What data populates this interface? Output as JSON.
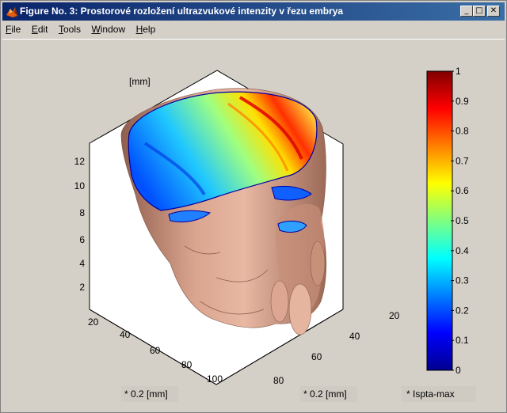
{
  "window": {
    "title": "Figure No. 3:  Prostorové rozložení ultrazvukové intenzity v řezu embrya",
    "minimize_glyph": "_",
    "maximize_glyph": "□",
    "close_glyph": "✕"
  },
  "menu": {
    "items": [
      {
        "label": "File",
        "hotkey": "F",
        "rest": "ile"
      },
      {
        "label": "Edit",
        "hotkey": "E",
        "rest": "dit"
      },
      {
        "label": "Tools",
        "hotkey": "T",
        "rest": "ools"
      },
      {
        "label": "Window",
        "hotkey": "W",
        "rest": "indow"
      },
      {
        "label": "Help",
        "hotkey": "H",
        "rest": "elp"
      }
    ]
  },
  "chart_data": {
    "type": "surface-3d",
    "z_label": "[mm]",
    "x_label": "* 0.2 [mm]",
    "y_label": "* 0.2 [mm]",
    "z_ticks": [
      "2",
      "4",
      "6",
      "8",
      "10",
      "12"
    ],
    "x_ticks": [
      "20",
      "40",
      "60",
      "80",
      "100"
    ],
    "y_ticks": [
      "20",
      "40",
      "60",
      "80"
    ],
    "colorbar": {
      "label": "* Ispta-max",
      "ticks": [
        "0",
        "0.1",
        "0.2",
        "0.3",
        "0.4",
        "0.5",
        "0.6",
        "0.7",
        "0.8",
        "0.9",
        "1"
      ],
      "range": [
        0,
        1
      ],
      "colormap": "jet"
    },
    "colors": {
      "surface": "#d7a18c",
      "box_face": "#ffffff",
      "background": "#d4d0c8"
    }
  }
}
